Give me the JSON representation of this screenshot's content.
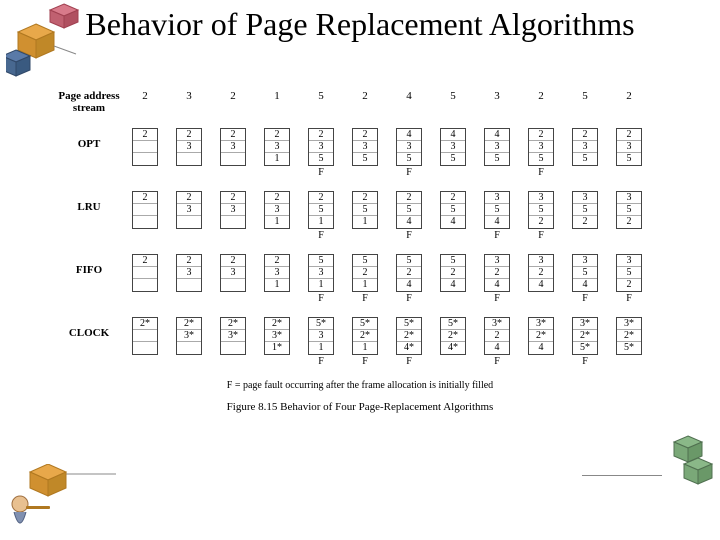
{
  "title": "Behavior of Page Replacement Algorithms",
  "stream_label": "Page address\nstream",
  "stream": [
    "2",
    "3",
    "2",
    "1",
    "5",
    "2",
    "4",
    "5",
    "3",
    "2",
    "5",
    "2"
  ],
  "frame_slots": 3,
  "algorithms": [
    {
      "name": "OPT",
      "cols": [
        {
          "f": [
            "2",
            "",
            ""
          ],
          "fault": ""
        },
        {
          "f": [
            "2",
            "3",
            ""
          ],
          "fault": ""
        },
        {
          "f": [
            "2",
            "3",
            ""
          ],
          "fault": ""
        },
        {
          "f": [
            "2",
            "3",
            "1"
          ],
          "fault": ""
        },
        {
          "f": [
            "2",
            "3",
            "5"
          ],
          "fault": "F"
        },
        {
          "f": [
            "2",
            "3",
            "5"
          ],
          "fault": ""
        },
        {
          "f": [
            "4",
            "3",
            "5"
          ],
          "fault": "F"
        },
        {
          "f": [
            "4",
            "3",
            "5"
          ],
          "fault": ""
        },
        {
          "f": [
            "4",
            "3",
            "5"
          ],
          "fault": ""
        },
        {
          "f": [
            "2",
            "3",
            "5"
          ],
          "fault": "F"
        },
        {
          "f": [
            "2",
            "3",
            "5"
          ],
          "fault": ""
        },
        {
          "f": [
            "2",
            "3",
            "5"
          ],
          "fault": ""
        }
      ]
    },
    {
      "name": "LRU",
      "cols": [
        {
          "f": [
            "2",
            "",
            ""
          ],
          "fault": ""
        },
        {
          "f": [
            "2",
            "3",
            ""
          ],
          "fault": ""
        },
        {
          "f": [
            "2",
            "3",
            ""
          ],
          "fault": ""
        },
        {
          "f": [
            "2",
            "3",
            "1"
          ],
          "fault": ""
        },
        {
          "f": [
            "2",
            "5",
            "1"
          ],
          "fault": "F"
        },
        {
          "f": [
            "2",
            "5",
            "1"
          ],
          "fault": ""
        },
        {
          "f": [
            "2",
            "5",
            "4"
          ],
          "fault": "F"
        },
        {
          "f": [
            "2",
            "5",
            "4"
          ],
          "fault": ""
        },
        {
          "f": [
            "3",
            "5",
            "4"
          ],
          "fault": "F"
        },
        {
          "f": [
            "3",
            "5",
            "2"
          ],
          "fault": "F"
        },
        {
          "f": [
            "3",
            "5",
            "2"
          ],
          "fault": ""
        },
        {
          "f": [
            "3",
            "5",
            "2"
          ],
          "fault": ""
        }
      ]
    },
    {
      "name": "FIFO",
      "cols": [
        {
          "f": [
            "2",
            "",
            ""
          ],
          "fault": ""
        },
        {
          "f": [
            "2",
            "3",
            ""
          ],
          "fault": ""
        },
        {
          "f": [
            "2",
            "3",
            ""
          ],
          "fault": ""
        },
        {
          "f": [
            "2",
            "3",
            "1"
          ],
          "fault": ""
        },
        {
          "f": [
            "5",
            "3",
            "1"
          ],
          "fault": "F"
        },
        {
          "f": [
            "5",
            "2",
            "1"
          ],
          "fault": "F"
        },
        {
          "f": [
            "5",
            "2",
            "4"
          ],
          "fault": "F"
        },
        {
          "f": [
            "5",
            "2",
            "4"
          ],
          "fault": ""
        },
        {
          "f": [
            "3",
            "2",
            "4"
          ],
          "fault": "F"
        },
        {
          "f": [
            "3",
            "2",
            "4"
          ],
          "fault": ""
        },
        {
          "f": [
            "3",
            "5",
            "4"
          ],
          "fault": "F"
        },
        {
          "f": [
            "3",
            "5",
            "2"
          ],
          "fault": "F"
        }
      ]
    },
    {
      "name": "CLOCK",
      "cols": [
        {
          "f": [
            "2*",
            "",
            ""
          ],
          "fault": ""
        },
        {
          "f": [
            "2*",
            "3*",
            ""
          ],
          "fault": ""
        },
        {
          "f": [
            "2*",
            "3*",
            ""
          ],
          "fault": ""
        },
        {
          "f": [
            "2*",
            "3*",
            "1*"
          ],
          "fault": ""
        },
        {
          "f": [
            "5*",
            "3",
            "1"
          ],
          "fault": "F"
        },
        {
          "f": [
            "5*",
            "2*",
            "1"
          ],
          "fault": "F"
        },
        {
          "f": [
            "5*",
            "2*",
            "4*"
          ],
          "fault": "F"
        },
        {
          "f": [
            "5*",
            "2*",
            "4*"
          ],
          "fault": ""
        },
        {
          "f": [
            "3*",
            "2",
            "4"
          ],
          "fault": "F"
        },
        {
          "f": [
            "3*",
            "2*",
            "4"
          ],
          "fault": ""
        },
        {
          "f": [
            "3*",
            "2*",
            "5*"
          ],
          "fault": "F"
        },
        {
          "f": [
            "3*",
            "2*",
            "5*"
          ],
          "fault": ""
        }
      ]
    }
  ],
  "footnote": "F = page fault occurring after the frame allocation is initially filled",
  "caption": "Figure 8.15   Behavior of Four Page-Replacement Algorithms",
  "colors": {
    "text": "#000000",
    "border": "#444444",
    "cube_blue": "#5a7aa8",
    "cube_orange": "#e8a84a",
    "cube_pink": "#d87a8a",
    "cube_green": "#7aa878",
    "skin": "#e8c090"
  }
}
